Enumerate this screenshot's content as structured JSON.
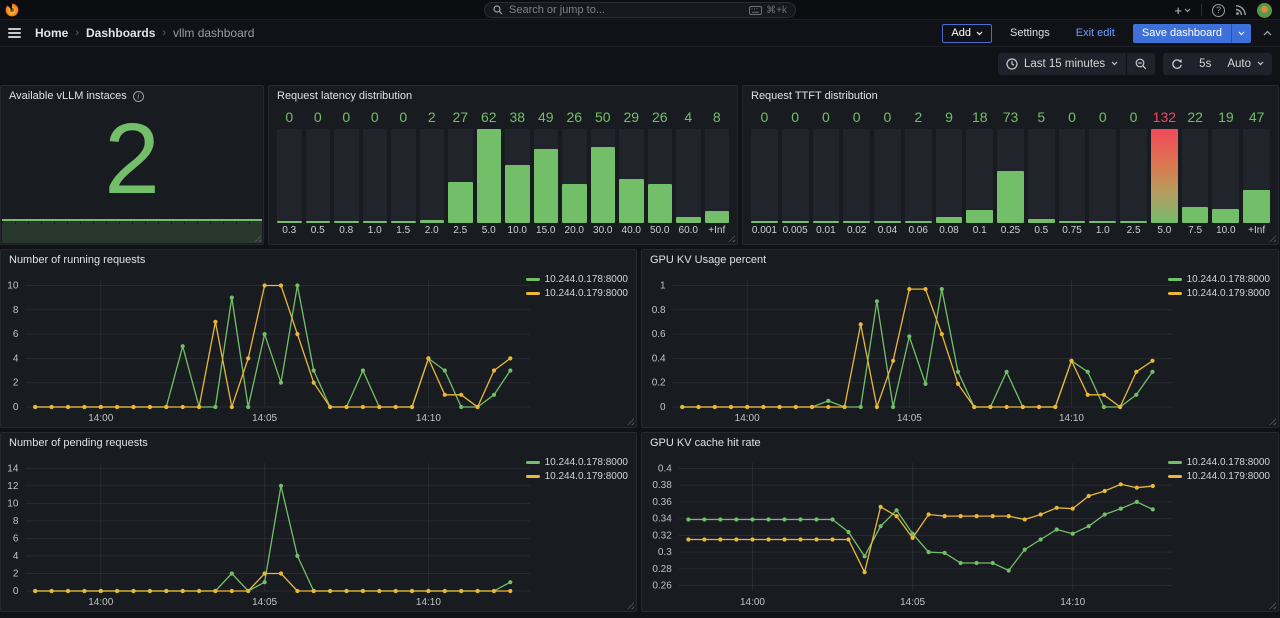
{
  "topnav": {
    "search_placeholder": "Search or jump to...",
    "shortcut": "⌘+k"
  },
  "breadcrumb": {
    "0": "Home",
    "1": "Dashboards",
    "2": "vllm dashboard"
  },
  "editbar": {
    "add": "Add",
    "settings": "Settings",
    "exit_edit": "Exit edit",
    "save": "Save dashboard"
  },
  "controls": {
    "time_range": "Last 15 minutes",
    "interval": "5s",
    "auto": "Auto"
  },
  "colors": {
    "green": "#73bf69",
    "yellow": "#eab839",
    "red": "#f2495c",
    "blue": "#3d71d9",
    "link_blue": "#6e9fff"
  },
  "chart_data": [
    {
      "id": "available-instances",
      "type": "stat",
      "title": "Available vLLM instaces",
      "value": "2",
      "color": "#73bf69",
      "sparkline": "flat"
    },
    {
      "id": "latency-dist",
      "type": "bar",
      "title": "Request latency distribution",
      "categories": [
        "0.3",
        "0.5",
        "0.8",
        "1.0",
        "1.5",
        "2.0",
        "2.5",
        "5.0",
        "10.0",
        "15.0",
        "20.0",
        "30.0",
        "40.0",
        "50.0",
        "60.0",
        "+Inf"
      ],
      "values": [
        0,
        0,
        0,
        0,
        0,
        2,
        27,
        62,
        38,
        49,
        26,
        50,
        29,
        26,
        4,
        8
      ],
      "max": 62,
      "bar_color": "#73bf69"
    },
    {
      "id": "ttft-dist",
      "type": "bar",
      "title": "Request TTFT distribution",
      "categories": [
        "0.001",
        "0.005",
        "0.01",
        "0.02",
        "0.04",
        "0.06",
        "0.08",
        "0.1",
        "0.25",
        "0.5",
        "0.75",
        "1.0",
        "2.5",
        "5.0",
        "7.5",
        "10.0",
        "+Inf"
      ],
      "values": [
        0,
        0,
        0,
        0,
        0,
        2,
        9,
        18,
        73,
        5,
        0,
        0,
        0,
        132,
        22,
        19,
        47
      ],
      "max": 132,
      "bar_color": "#73bf69",
      "highlight": {
        "index": 13,
        "color": "#f2495c",
        "gradient": "linear-gradient(180deg,#f2495c 0%,#d97a50 40%,#b99a5e 65%,#8cae66 88%,#73bf69 100%)"
      }
    },
    {
      "id": "running-requests",
      "type": "line",
      "title": "Number of running requests",
      "y_ticks": [
        0,
        2,
        4,
        6,
        8,
        10
      ],
      "y_min": 0,
      "y_max": 10.45,
      "x_domain": [
        -0.3,
        15.1
      ],
      "x_step_min": 0.5,
      "x_ticks": [
        {
          "min": 2,
          "label": "14:00"
        },
        {
          "min": 7,
          "label": "14:05"
        },
        {
          "min": 12,
          "label": "14:10"
        }
      ],
      "series": [
        {
          "name": "10.244.0.178:8000",
          "color": "#73bf69",
          "values": [
            0,
            0,
            0,
            0,
            0,
            0,
            0,
            0,
            0,
            5,
            0,
            0,
            9,
            0,
            6,
            2,
            10,
            3,
            0,
            0,
            3,
            0,
            0,
            0,
            4,
            3,
            0,
            0,
            1,
            3
          ]
        },
        {
          "name": "10.244.0.179:8000",
          "color": "#eab839",
          "values": [
            0,
            0,
            0,
            0,
            0,
            0,
            0,
            0,
            0,
            0,
            0,
            7,
            0,
            4,
            10,
            10,
            6,
            2,
            0,
            0,
            0,
            0,
            0,
            0,
            4,
            1,
            1,
            0,
            3,
            4
          ]
        }
      ]
    },
    {
      "id": "kv-usage",
      "type": "line",
      "title": "GPU KV Usage percent",
      "y_ticks": [
        0,
        0.2,
        0.4,
        0.6,
        0.8,
        1
      ],
      "y_min": 0,
      "y_max": 1.045,
      "x_domain": [
        -0.3,
        15.1
      ],
      "x_step_min": 0.5,
      "x_ticks": [
        {
          "min": 2,
          "label": "14:00"
        },
        {
          "min": 7,
          "label": "14:05"
        },
        {
          "min": 12,
          "label": "14:10"
        }
      ],
      "series": [
        {
          "name": "10.244.0.178:8000",
          "color": "#73bf69",
          "values": [
            0,
            0,
            0,
            0,
            0,
            0,
            0,
            0,
            0,
            0.05,
            0,
            0,
            0.87,
            0,
            0.58,
            0.19,
            0.97,
            0.29,
            0,
            0,
            0.29,
            0,
            0,
            0,
            0.38,
            0.29,
            0,
            0,
            0.1,
            0.29
          ]
        },
        {
          "name": "10.244.0.179:8000",
          "color": "#eab839",
          "values": [
            0,
            0,
            0,
            0,
            0,
            0,
            0,
            0,
            0,
            0,
            0,
            0.68,
            0,
            0.38,
            0.97,
            0.97,
            0.6,
            0.19,
            0,
            0,
            0,
            0,
            0,
            0,
            0.38,
            0.1,
            0.1,
            0,
            0.29,
            0.38
          ]
        }
      ]
    },
    {
      "id": "pending-requests",
      "type": "line",
      "title": "Number of pending requests",
      "y_ticks": [
        0,
        2,
        4,
        6,
        8,
        10,
        12,
        14
      ],
      "y_min": 0,
      "y_max": 14.6,
      "x_domain": [
        -0.3,
        15.1
      ],
      "x_step_min": 0.5,
      "x_ticks": [
        {
          "min": 2,
          "label": "14:00"
        },
        {
          "min": 7,
          "label": "14:05"
        },
        {
          "min": 12,
          "label": "14:10"
        }
      ],
      "series": [
        {
          "name": "10.244.0.178:8000",
          "color": "#73bf69",
          "values": [
            0,
            0,
            0,
            0,
            0,
            0,
            0,
            0,
            0,
            0,
            0,
            0,
            2,
            0,
            1,
            12,
            4,
            0,
            0,
            0,
            0,
            0,
            0,
            0,
            0,
            0,
            0,
            0,
            0,
            1
          ]
        },
        {
          "name": "10.244.0.179:8000",
          "color": "#eab839",
          "values": [
            0,
            0,
            0,
            0,
            0,
            0,
            0,
            0,
            0,
            0,
            0,
            0,
            0,
            0,
            2,
            2,
            0,
            0,
            0,
            0,
            0,
            0,
            0,
            0,
            0,
            0,
            0,
            0,
            0,
            0
          ]
        }
      ]
    },
    {
      "id": "kv-hit-rate",
      "type": "line",
      "title": "GPU KV cache hit rate",
      "y_ticks": [
        0.26,
        0.28,
        0.3,
        0.32,
        0.34,
        0.36,
        0.38,
        0.4
      ],
      "y_min": 0.2535,
      "y_max": 0.4065,
      "x_domain": [
        -0.3,
        15.1
      ],
      "x_step_min": 0.5,
      "x_ticks": [
        {
          "min": 2,
          "label": "14:00"
        },
        {
          "min": 7,
          "label": "14:05"
        },
        {
          "min": 12,
          "label": "14:10"
        }
      ],
      "series": [
        {
          "name": "10.244.0.178:8000",
          "color": "#73bf69",
          "values": [
            0.339,
            0.339,
            0.339,
            0.339,
            0.339,
            0.339,
            0.339,
            0.339,
            0.339,
            0.339,
            0.324,
            0.295,
            0.331,
            0.35,
            0.322,
            0.3,
            0.299,
            0.287,
            0.287,
            0.287,
            0.278,
            0.303,
            0.315,
            0.327,
            0.322,
            0.331,
            0.345,
            0.352,
            0.36,
            0.351
          ]
        },
        {
          "name": "10.244.0.179:8000",
          "color": "#eab839",
          "values": [
            0.315,
            0.315,
            0.315,
            0.315,
            0.315,
            0.315,
            0.315,
            0.315,
            0.315,
            0.315,
            0.315,
            0.276,
            0.354,
            0.343,
            0.317,
            0.345,
            0.343,
            0.343,
            0.343,
            0.343,
            0.343,
            0.339,
            0.345,
            0.353,
            0.352,
            0.367,
            0.373,
            0.381,
            0.377,
            0.379
          ]
        }
      ]
    }
  ]
}
